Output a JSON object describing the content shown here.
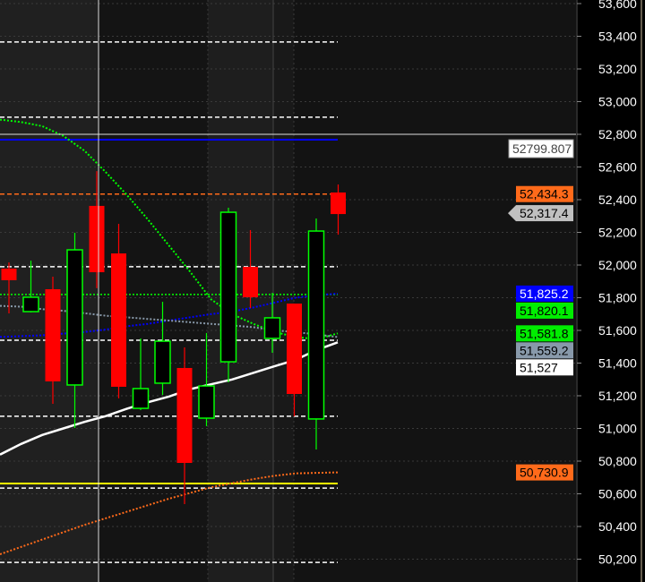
{
  "chart_data": {
    "type": "candlestick",
    "ylim": [
      50170,
      53620
    ],
    "y_ticks": [
      "53,600",
      "53,400",
      "53,200",
      "53,000",
      "52,800",
      "52,600",
      "52,400",
      "52,200",
      "52,000",
      "51,800",
      "51,600",
      "51,400",
      "51,200",
      "51,000",
      "50,800",
      "50,600",
      "50,400",
      "50,200"
    ],
    "y_tick_values": [
      53600,
      53400,
      53200,
      53000,
      52800,
      52600,
      52400,
      52200,
      52000,
      51800,
      51600,
      51400,
      51200,
      51000,
      50800,
      50600,
      50400,
      50200
    ],
    "up_color": "#00ff00",
    "down_color": "#ff0000",
    "candles": [
      {
        "o": 51978,
        "h": 52016,
        "l": 51704,
        "c": 51907
      },
      {
        "o": 51715,
        "h": 52027,
        "l": 51710,
        "c": 51803
      },
      {
        "o": 51852,
        "h": 51929,
        "l": 51151,
        "c": 51288
      },
      {
        "o": 51266,
        "h": 52197,
        "l": 51003,
        "c": 52093
      },
      {
        "o": 52362,
        "h": 52575,
        "l": 51858,
        "c": 51956
      },
      {
        "o": 52071,
        "h": 52252,
        "l": 51184,
        "c": 51255
      },
      {
        "o": 51123,
        "h": 51551,
        "l": 51112,
        "c": 51244
      },
      {
        "o": 51277,
        "h": 51775,
        "l": 51205,
        "c": 51534
      },
      {
        "o": 51370,
        "h": 51496,
        "l": 50537,
        "c": 50789
      },
      {
        "o": 51063,
        "h": 51584,
        "l": 51014,
        "c": 51260
      },
      {
        "o": 51408,
        "h": 52351,
        "l": 51282,
        "c": 52323
      },
      {
        "o": 51989,
        "h": 52214,
        "l": 51737,
        "c": 51803
      },
      {
        "o": 51551,
        "h": 51830,
        "l": 51463,
        "c": 51677
      },
      {
        "o": 51764,
        "h": 51764,
        "l": 51074,
        "c": 51211
      },
      {
        "o": 51058,
        "h": 52285,
        "l": 50871,
        "c": 52208
      },
      {
        "o": 52444,
        "h": 52493,
        "l": 52186,
        "c": 52312
      }
    ],
    "indicators": [
      {
        "color": "#ffffff",
        "style": "solid",
        "values": [
          50840,
          50905,
          50960,
          51000,
          51040,
          51075,
          51120,
          51160,
          51195,
          51240,
          51270,
          51300,
          51340,
          51380,
          51420,
          51480,
          51527
        ]
      },
      {
        "color": "#00ff00",
        "style": "dotted",
        "values": [
          52890,
          52875,
          52850,
          52790,
          52700,
          52570,
          52430,
          52280,
          52120,
          51960,
          51790,
          51700,
          51640,
          51590,
          51560,
          51545,
          51581.8
        ]
      },
      {
        "color": "#0000ff",
        "style": "dotted",
        "values": [
          51560,
          51565,
          51570,
          51580,
          51590,
          51605,
          51625,
          51640,
          51660,
          51680,
          51700,
          51715,
          51740,
          51770,
          51800,
          51815,
          51825.2
        ]
      },
      {
        "color": "#8899aa",
        "style": "dotted",
        "values": [
          51750,
          51745,
          51730,
          51720,
          51705,
          51690,
          51680,
          51670,
          51660,
          51650,
          51640,
          51630,
          51620,
          51600,
          51590,
          51575,
          51559.2
        ]
      },
      {
        "color": "#ff6a1a",
        "style": "dotted",
        "values": [
          50230,
          50275,
          50320,
          50365,
          50410,
          50450,
          50490,
          50530,
          50570,
          50605,
          50640,
          50665,
          50690,
          50710,
          50725,
          50728,
          50730.9
        ]
      }
    ],
    "horizontal_lines": [
      {
        "value": 52434.3,
        "color": "#ff6a1a",
        "style": "dashed"
      },
      {
        "value": 51820.1,
        "color": "#00ff00",
        "style": "dotted"
      },
      {
        "value": 52767,
        "color": "#0000ff",
        "style": "solid"
      },
      {
        "value": 50663,
        "color": "#ffff00",
        "style": "solid"
      },
      {
        "value": 53365,
        "color": "#ffffff",
        "style": "dashed"
      },
      {
        "value": 52905,
        "color": "#ffffff",
        "style": "dashed"
      },
      {
        "value": 51990,
        "color": "#ffffff",
        "style": "dashed"
      },
      {
        "value": 51540,
        "color": "#ffffff",
        "style": "dashed"
      },
      {
        "value": 51075,
        "color": "#ffffff",
        "style": "dashed"
      },
      {
        "value": 50635,
        "color": "#ffffff",
        "style": "dashed"
      },
      {
        "value": 50180,
        "color": "#ffffff",
        "style": "dashed"
      }
    ],
    "crosshair": {
      "value": 52799.807,
      "label": "52799.807"
    },
    "price_tags": [
      {
        "label": "52,434.3",
        "value": 52434.3,
        "bg": "#ff6a1a",
        "fg": "#000000"
      },
      {
        "label": "52,317.4",
        "value": 52317.4,
        "bg": "#c0c0c0",
        "fg": "#000000",
        "arrow": true
      },
      {
        "label": "51,825.2",
        "value": 51825.2,
        "bg": "#0000ff",
        "fg": "#ffffff"
      },
      {
        "label": "51,820.1",
        "value": 51820.1,
        "bg": "#00ee00",
        "fg": "#000000"
      },
      {
        "label": "51,581.8",
        "value": 51581.8,
        "bg": "#00ee00",
        "fg": "#000000"
      },
      {
        "label": "51,559.2",
        "value": 51559.2,
        "bg": "#8899aa",
        "fg": "#000000"
      },
      {
        "label": "51,527",
        "value": 51527,
        "bg": "#ffffff",
        "fg": "#000000"
      },
      {
        "label": "50,730.9",
        "value": 50730.9,
        "bg": "#ff6a1a",
        "fg": "#000000"
      }
    ]
  }
}
